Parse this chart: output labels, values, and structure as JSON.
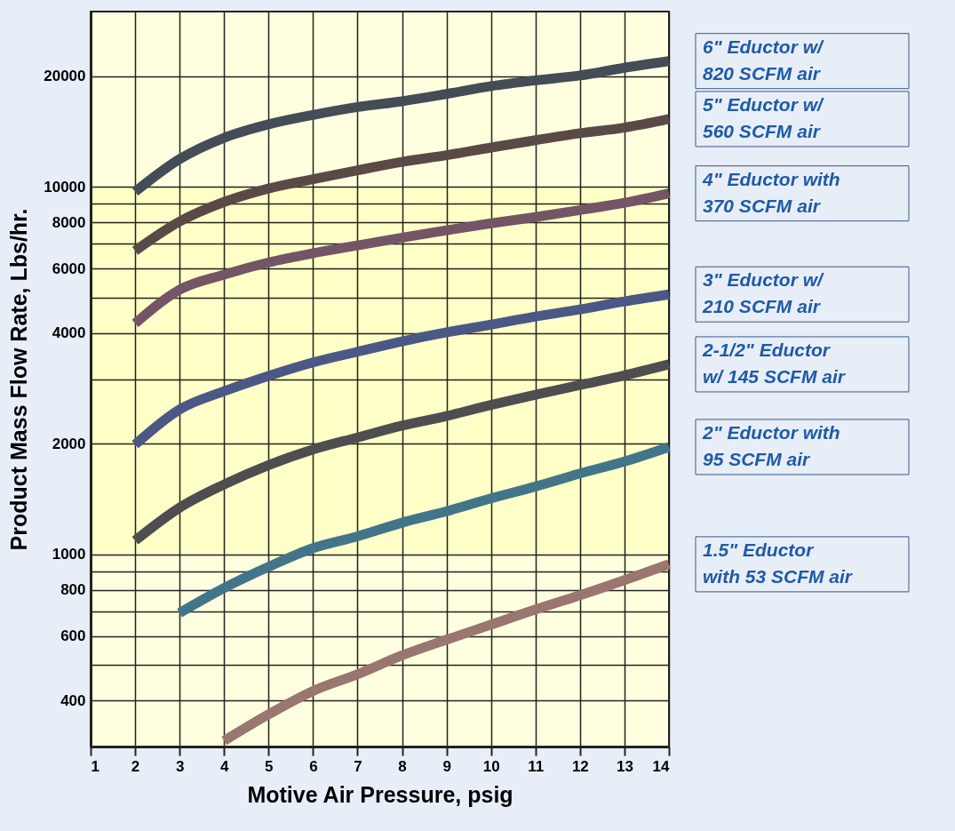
{
  "chart_data": {
    "type": "line",
    "xlabel": "Motive Air Pressure, psig",
    "ylabel": "Product Mass Flow Rate, Lbs/hr.",
    "xlim": [
      1,
      14
    ],
    "xticks": [
      1,
      2,
      3,
      4,
      5,
      6,
      7,
      8,
      9,
      10,
      11,
      12,
      13,
      14
    ],
    "ylim": [
      300,
      30000
    ],
    "yticks": [
      400,
      {
        "value": 500,
        "label": null
      },
      600,
      {
        "value": 700,
        "label": null
      },
      800,
      {
        "value": 900,
        "label": null
      },
      1000,
      2000,
      {
        "value": 3000,
        "label": null
      },
      4000,
      {
        "value": 5000,
        "label": null
      },
      6000,
      {
        "value": 7000,
        "label": null
      },
      8000,
      {
        "value": 9000,
        "label": null
      },
      10000,
      20000
    ],
    "log": true,
    "grid": true,
    "bands": [
      {
        "axis": "y",
        "from": 300,
        "to": 1000,
        "color": "#ffffe0"
      },
      {
        "axis": "y",
        "from": 1000,
        "to": 10000,
        "color": "#ffffc8"
      },
      {
        "axis": "y",
        "from": 10000,
        "to": 30000,
        "color": "#ffffe0"
      }
    ],
    "series": [
      {
        "name": "6\" Eductor w/ 820 SCFM air",
        "color": "#434c57",
        "x": [
          2,
          3,
          4,
          5,
          6,
          7,
          8,
          9,
          10,
          11,
          12,
          13,
          14
        ],
        "values": [
          9700,
          11900,
          13600,
          14800,
          15700,
          16500,
          17100,
          17900,
          18800,
          19500,
          20100,
          21100,
          22000
        ]
      },
      {
        "name": "5\" Eductor w/ 560 SCFM air",
        "color": "#594a47",
        "x": [
          2,
          3,
          4,
          5,
          6,
          7,
          8,
          9,
          10,
          11,
          12,
          13,
          14
        ],
        "values": [
          6700,
          8050,
          9100,
          9900,
          10500,
          11100,
          11700,
          12200,
          12800,
          13400,
          14000,
          14500,
          15300
        ]
      },
      {
        "name": "4\" Eductor with 370 SCFM air",
        "color": "#745565",
        "x": [
          2,
          3,
          4,
          5,
          6,
          7,
          8,
          9,
          10,
          11,
          12,
          13,
          14
        ],
        "values": [
          4250,
          5250,
          5770,
          6230,
          6600,
          6930,
          7280,
          7620,
          7960,
          8280,
          8650,
          9050,
          9600
        ]
      },
      {
        "name": "3\" Eductor w/ 210 SCFM air",
        "color": "#4b5886",
        "x": [
          2,
          3,
          4,
          5,
          6,
          7,
          8,
          9,
          10,
          11,
          12,
          13,
          14
        ],
        "values": [
          1990,
          2480,
          2780,
          3060,
          3330,
          3560,
          3800,
          4020,
          4220,
          4440,
          4640,
          4880,
          5100
        ]
      },
      {
        "name": "2-1/2\" Eductor w/ 145 SCFM air",
        "color": "#4e4e50",
        "x": [
          2,
          3,
          4,
          5,
          6,
          7,
          8,
          9,
          10,
          11,
          12,
          13,
          14
        ],
        "values": [
          1090,
          1340,
          1550,
          1750,
          1930,
          2080,
          2240,
          2380,
          2550,
          2720,
          2890,
          3070,
          3290
        ]
      },
      {
        "name": "2\" Eductor with 95 SCFM air",
        "color": "#43758a",
        "x": [
          3,
          4,
          5,
          6,
          7,
          8,
          9,
          10,
          11,
          12,
          13,
          14
        ],
        "values": [
          693,
          810,
          925,
          1040,
          1120,
          1220,
          1310,
          1420,
          1530,
          1660,
          1790,
          1960
        ]
      },
      {
        "name": "1.5\" Eductor with 53 SCFM air",
        "color": "#9a7670",
        "x": [
          4,
          5,
          6,
          7,
          8,
          9,
          10,
          11,
          12,
          13,
          14
        ],
        "values": [
          311,
          367,
          425,
          472,
          531,
          586,
          644,
          708,
          774,
          851,
          940
        ]
      }
    ]
  }
}
